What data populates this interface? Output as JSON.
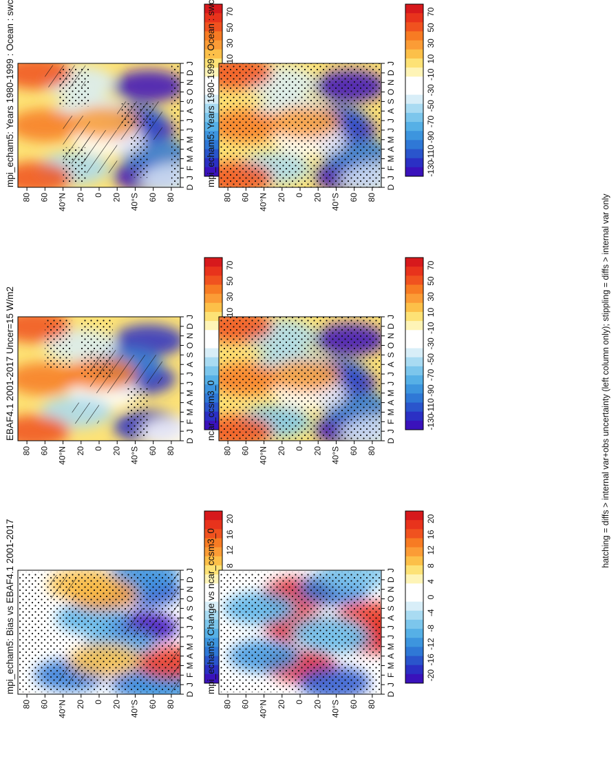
{
  "figure": {
    "footnote": "hatching = diffs > internal var+obs uncertainty (left column only); stippling = diffs > internal var only"
  },
  "chart_data": [
    {
      "type": "heatmap",
      "id": "panel-model-left",
      "title": "mpi_echam5: Years 1980-1999 : Ocean : swcftoa W m⁻²",
      "xlabel": "month",
      "x_ticks": [
        "D",
        "J",
        "F",
        "M",
        "A",
        "M",
        "J",
        "J",
        "A",
        "S",
        "O",
        "N",
        "D",
        "J"
      ],
      "y_ticks": [
        "80",
        "60",
        "40°N",
        "20",
        "0",
        "20",
        "40°S",
        "60",
        "80"
      ],
      "colorbar": [
        "70",
        "50",
        "30",
        "10",
        "-10",
        "-30",
        "-50",
        "-70",
        "-90",
        "-110",
        "-130"
      ],
      "value_range": [
        -130,
        70
      ],
      "blobs": [
        [
          6,
          -45,
          -135
        ],
        [
          1.2,
          -55,
          -130
        ],
        [
          10.6,
          -55,
          -125
        ],
        [
          7,
          -35,
          -105
        ],
        [
          3.5,
          -62,
          -98
        ],
        [
          5,
          -10,
          -20
        ],
        [
          8,
          10,
          -45
        ],
        [
          2,
          28,
          -55
        ],
        [
          11,
          22,
          -45
        ],
        [
          1,
          70,
          45
        ],
        [
          6.5,
          60,
          30
        ],
        [
          12,
          70,
          45
        ],
        [
          6.8,
          -5,
          25
        ],
        [
          0.8,
          -85,
          -40
        ]
      ],
      "stipple_rects": [
        [
          1.0,
          5.3,
          -55,
          -35
        ],
        [
          6.3,
          8.8,
          -60,
          -25
        ],
        [
          0.5,
          4.2,
          15,
          40
        ],
        [
          8.5,
          12.5,
          10,
          45
        ],
        [
          0.2,
          12.8,
          -90,
          -80
        ]
      ],
      "hatch_rects": [
        [
          5.0,
          9.0,
          -70,
          -20
        ],
        [
          2.5,
          7.5,
          10,
          40
        ],
        [
          1.5,
          6.0,
          -20,
          20
        ],
        [
          10.5,
          12.8,
          15,
          60
        ]
      ]
    },
    {
      "type": "heatmap",
      "id": "panel-model-right",
      "title": "mpi_echam5: Years 1980-1999 : Ocean : swcftoa W m⁻²",
      "xlabel": "month",
      "x_ticks": [
        "D",
        "J",
        "F",
        "M",
        "A",
        "M",
        "J",
        "J",
        "A",
        "S",
        "O",
        "N",
        "D",
        "J"
      ],
      "y_ticks": [
        "80",
        "60",
        "40°N",
        "20",
        "0",
        "20",
        "40°S",
        "60",
        "80"
      ],
      "colorbar": [
        "70",
        "50",
        "30",
        "10",
        "-10",
        "-30",
        "-50",
        "-70",
        "-90",
        "-110",
        "-130"
      ],
      "value_range": [
        -130,
        70
      ],
      "blobs": [
        [
          6,
          -45,
          -135
        ],
        [
          1.2,
          -55,
          -130
        ],
        [
          10.6,
          -55,
          -125
        ],
        [
          7,
          -35,
          -105
        ],
        [
          3.5,
          -62,
          -98
        ],
        [
          5,
          -10,
          -20
        ],
        [
          8,
          10,
          -45
        ],
        [
          2,
          28,
          -55
        ],
        [
          11,
          22,
          -45
        ],
        [
          1,
          70,
          45
        ],
        [
          6.5,
          60,
          30
        ],
        [
          12,
          70,
          45
        ],
        [
          6.8,
          -5,
          25
        ],
        [
          0.8,
          -85,
          -40
        ]
      ],
      "stipple_rects": [
        [
          0.0,
          13.0,
          -90,
          90
        ]
      ],
      "hatch_rects": []
    },
    {
      "type": "heatmap",
      "id": "panel-obs",
      "title": "EBAF4.1 2001-2017 Uncer=15 W/m2",
      "xlabel": "month",
      "x_ticks": [
        "D",
        "J",
        "F",
        "M",
        "A",
        "M",
        "J",
        "J",
        "A",
        "S",
        "O",
        "N",
        "D",
        "J"
      ],
      "y_ticks": [
        "80",
        "60",
        "40°N",
        "20",
        "0",
        "20",
        "40°S",
        "60",
        "80"
      ],
      "colorbar": [
        "70",
        "50",
        "30",
        "10",
        "-10",
        "-30",
        "-50",
        "-70",
        "-90",
        "-110",
        "-130"
      ],
      "value_range": [
        -130,
        70
      ],
      "blobs": [
        [
          6.5,
          -45,
          -118
        ],
        [
          1.5,
          -55,
          -112
        ],
        [
          10.5,
          -55,
          -115
        ],
        [
          8,
          -30,
          -90
        ],
        [
          5,
          -5,
          -35
        ],
        [
          3,
          25,
          -55
        ],
        [
          10,
          20,
          -40
        ],
        [
          1,
          72,
          45
        ],
        [
          6.5,
          62,
          35
        ],
        [
          12,
          72,
          42
        ],
        [
          7,
          -2,
          30
        ],
        [
          0.8,
          -85,
          -35
        ]
      ],
      "stipple_rects": [
        [
          0.5,
          5.5,
          -55,
          -30
        ],
        [
          6.5,
          12.8,
          -15,
          20
        ],
        [
          7.5,
          12.8,
          30,
          60
        ]
      ],
      "hatch_rects": [
        [
          6.0,
          9.0,
          -70,
          -20
        ],
        [
          5.0,
          9.5,
          -20,
          10
        ],
        [
          1.8,
          4.0,
          0,
          30
        ]
      ]
    },
    {
      "type": "heatmap",
      "id": "panel-obs-copy",
      "title": "ncar_ccsm3_0",
      "xlabel": "month",
      "x_ticks": [
        "D",
        "J",
        "F",
        "M",
        "A",
        "M",
        "J",
        "J",
        "A",
        "S",
        "O",
        "N",
        "D",
        "J"
      ],
      "y_ticks": [
        "80",
        "60",
        "40°N",
        "20",
        "0",
        "20",
        "40°S",
        "60",
        "80"
      ],
      "colorbar": [
        "70",
        "50",
        "30",
        "10",
        "-10",
        "-30",
        "-50",
        "-70",
        "-90",
        "-110",
        "-130"
      ],
      "value_range": [
        -130,
        70
      ],
      "blobs": [
        [
          6,
          -45,
          -130
        ],
        [
          1.2,
          -55,
          -125
        ],
        [
          10.6,
          -55,
          -120
        ],
        [
          7,
          -35,
          -100
        ],
        [
          3.5,
          -62,
          -95
        ],
        [
          5,
          -10,
          -25
        ],
        [
          8,
          10,
          -50
        ],
        [
          2,
          28,
          -60
        ],
        [
          11,
          22,
          -50
        ],
        [
          1,
          70,
          45
        ],
        [
          6.5,
          60,
          30
        ],
        [
          12,
          70,
          40
        ],
        [
          6.8,
          -5,
          25
        ],
        [
          0.8,
          -85,
          -40
        ]
      ],
      "stipple_rects": [
        [
          0.0,
          13.0,
          -90,
          90
        ]
      ],
      "hatch_rects": []
    },
    {
      "type": "heatmap",
      "id": "panel-bias",
      "title": "mpi_echam5: Bias vs EBAF4.1 2001-2017",
      "xlabel": "month",
      "x_ticks": [
        "D",
        "J",
        "F",
        "M",
        "A",
        "M",
        "J",
        "J",
        "A",
        "S",
        "O",
        "N",
        "D",
        "J"
      ],
      "y_ticks": [
        "80",
        "60",
        "40°N",
        "20",
        "0",
        "20",
        "40°S",
        "60",
        "80"
      ],
      "colorbar": [
        "20",
        "16",
        "12",
        "8",
        "4",
        "0",
        "-4",
        "-8",
        "-12",
        "-16",
        "-20"
      ],
      "value_range": [
        -22,
        22
      ],
      "blobs": [
        [
          7,
          -48,
          -22
        ],
        [
          1.2,
          -52,
          -14
        ],
        [
          10.8,
          -52,
          -17
        ],
        [
          5,
          -22,
          -10
        ],
        [
          8,
          8,
          -10
        ],
        [
          2,
          32,
          -14
        ],
        [
          11,
          -12,
          -9
        ],
        [
          12.5,
          -50,
          -11
        ],
        [
          1,
          -75,
          -12
        ],
        [
          10.5,
          -3,
          12
        ],
        [
          11.5,
          18,
          10
        ],
        [
          3.3,
          -80,
          18
        ],
        [
          3.6,
          -6,
          10
        ]
      ],
      "stipple_rects": [
        [
          0.2,
          12.8,
          -90,
          90
        ]
      ],
      "hatch_rects": [
        [
          6.0,
          9.0,
          -70,
          -28
        ],
        [
          0.8,
          3.0,
          15,
          45
        ],
        [
          10.0,
          12.5,
          25,
          55
        ],
        [
          0.3,
          12.8,
          -90,
          -78
        ]
      ]
    },
    {
      "type": "heatmap",
      "id": "panel-change",
      "title": "mpi_echam5: Change vs ncar_ccsm3_0",
      "xlabel": "month",
      "x_ticks": [
        "D",
        "J",
        "F",
        "M",
        "A",
        "M",
        "J",
        "J",
        "A",
        "S",
        "O",
        "N",
        "D",
        "J"
      ],
      "y_ticks": [
        "80",
        "60",
        "40°N",
        "20",
        "0",
        "20",
        "40°S",
        "60",
        "80"
      ],
      "colorbar": [
        "20",
        "16",
        "12",
        "8",
        "4",
        "0",
        "-4",
        "-8",
        "-12",
        "-16",
        "-20"
      ],
      "value_range": [
        -22,
        22
      ],
      "blobs": [
        [
          7,
          0,
          30
        ],
        [
          3,
          0,
          26
        ],
        [
          10.5,
          2,
          26
        ],
        [
          6,
          -82,
          26
        ],
        [
          8,
          -78,
          18
        ],
        [
          1.2,
          -38,
          -16
        ],
        [
          11,
          -38,
          -14
        ],
        [
          6,
          -38,
          -9
        ],
        [
          4,
          40,
          -12
        ],
        [
          9,
          45,
          -10
        ],
        [
          6.5,
          -30,
          -6
        ],
        [
          12.5,
          -60,
          -8
        ]
      ],
      "stipple_rects": [
        [
          0.2,
          12.8,
          -90,
          90
        ]
      ],
      "hatch_rects": []
    }
  ]
}
